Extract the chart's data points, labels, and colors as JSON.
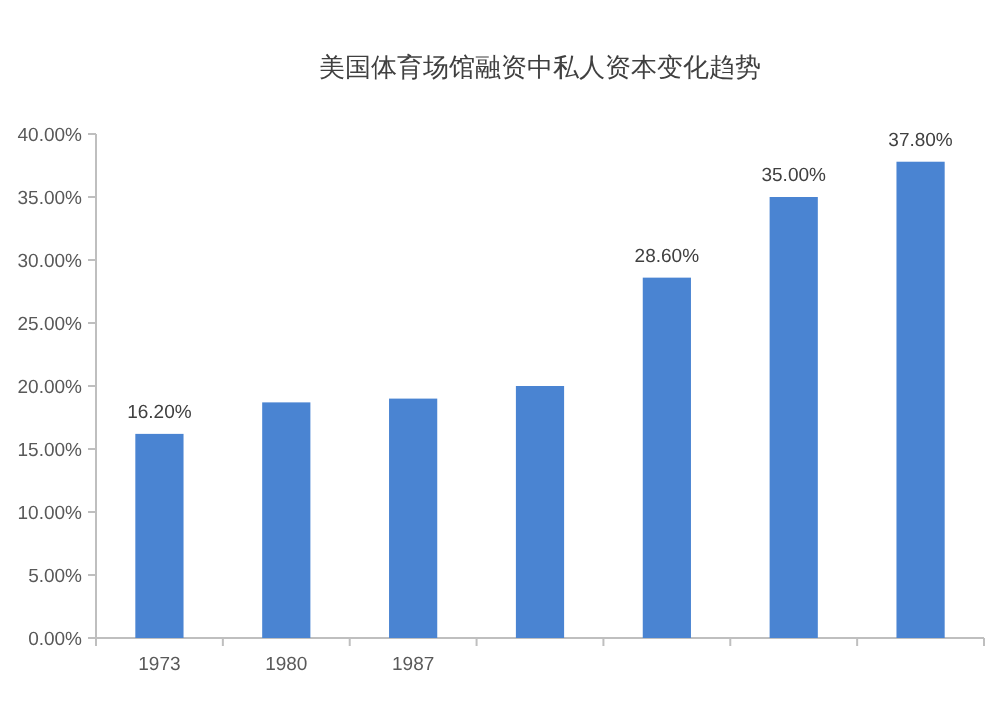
{
  "chart_data": {
    "type": "bar",
    "title": "美国体育场馆融资中私人资本变化趋势",
    "categories": [
      "1973",
      "1980",
      "1987",
      null,
      null,
      null,
      null
    ],
    "values": [
      16.2,
      18.7,
      19.0,
      20.0,
      28.6,
      35.0,
      37.8
    ],
    "value_labels": [
      "16.20%",
      null,
      null,
      null,
      "28.60%",
      "35.00%",
      "37.80%"
    ],
    "color": "#4a84d2",
    "ylim": [
      0,
      40
    ],
    "yticks": [
      {
        "value": 0,
        "label": "0.00%"
      },
      {
        "value": 5,
        "label": "5.00%"
      },
      {
        "value": 10,
        "label": "10.00%"
      },
      {
        "value": 15,
        "label": "15.00%"
      },
      {
        "value": 20,
        "label": "20.00%"
      },
      {
        "value": 25,
        "label": "25.00%"
      },
      {
        "value": 30,
        "label": "30.00%"
      },
      {
        "value": 35,
        "label": "35.00%"
      },
      {
        "value": 40,
        "label": "40.00%"
      }
    ],
    "grid": false
  }
}
